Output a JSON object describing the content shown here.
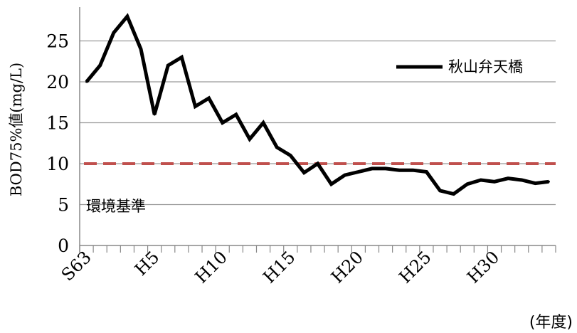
{
  "chart_data": {
    "type": "line",
    "x": [
      "S63",
      "H1",
      "H2",
      "H3",
      "H4",
      "H5",
      "H6",
      "H7",
      "H8",
      "H9",
      "H10",
      "H11",
      "H12",
      "H13",
      "H14",
      "H15",
      "H16",
      "H17",
      "H18",
      "H19",
      "H20",
      "H21",
      "H22",
      "H23",
      "H24",
      "H25",
      "H26",
      "H27",
      "H28",
      "H29",
      "H30",
      "R1",
      "R2",
      "R3",
      "R4"
    ],
    "xtick_labels": [
      "S63",
      "H5",
      "H10",
      "H15",
      "H20",
      "H25",
      "H30"
    ],
    "series": [
      {
        "name": "秋山弁天橋",
        "color": "#000000",
        "values": [
          20,
          22,
          26,
          28,
          24,
          16,
          22,
          23,
          17,
          18,
          15,
          16,
          13,
          15,
          12,
          11,
          8.9,
          10,
          7.5,
          8.6,
          9.0,
          9.4,
          9.4,
          9.2,
          9.2,
          9.0,
          6.7,
          6.3,
          7.5,
          8.0,
          7.8,
          8.2,
          8.0,
          7.6,
          7.8
        ]
      }
    ],
    "reference_line": {
      "label": "環境基準",
      "value": 10,
      "color": "#c0504d"
    },
    "ylabel": "BOD75%値(mg/L)",
    "xunit": "(年度)",
    "yticks": [
      0,
      5,
      10,
      15,
      20,
      25
    ],
    "ylim": [
      0,
      30
    ],
    "grid": true,
    "legend_position": "top-right"
  }
}
